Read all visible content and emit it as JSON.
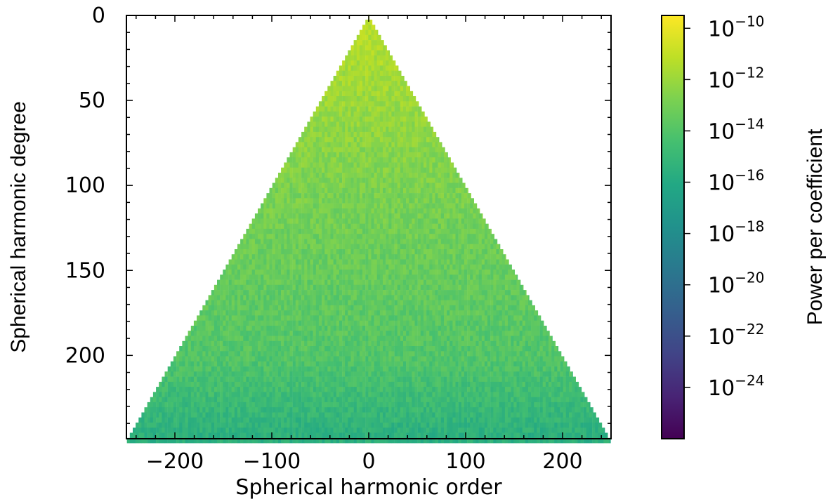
{
  "chart_data": {
    "type": "heatmap",
    "title": "",
    "xlabel": "Spherical harmonic order",
    "ylabel": "Spherical harmonic degree",
    "xlim": [
      -250,
      250
    ],
    "ylim": [
      249,
      0
    ],
    "x_ticks": [
      -200,
      -100,
      0,
      100,
      200
    ],
    "x_tick_labels": [
      "−200",
      "−100",
      "0",
      "100",
      "200"
    ],
    "y_ticks": [
      0,
      50,
      100,
      150,
      200
    ],
    "y_tick_labels": [
      "0",
      "50",
      "100",
      "150",
      "200"
    ],
    "lmax": 249,
    "data_description_values": {
      "power_log10_near_l0": -11.2,
      "power_log10_at_l100": -12.8,
      "power_log10_at_l200": -14.0,
      "power_log10_at_lmax": -15.6
    },
    "colorbar": {
      "label": "Power per coefficient",
      "scale": "log",
      "colormap": "viridis",
      "range_log10": [
        -26,
        -9.5
      ],
      "ticks_log10": [
        -10,
        -12,
        -14,
        -16,
        -18,
        -20,
        -22,
        -24
      ],
      "tick_base": "10",
      "tick_exponents": [
        "−10",
        "−12",
        "−14",
        "−16",
        "−18",
        "−20",
        "−22",
        "−24"
      ]
    }
  }
}
